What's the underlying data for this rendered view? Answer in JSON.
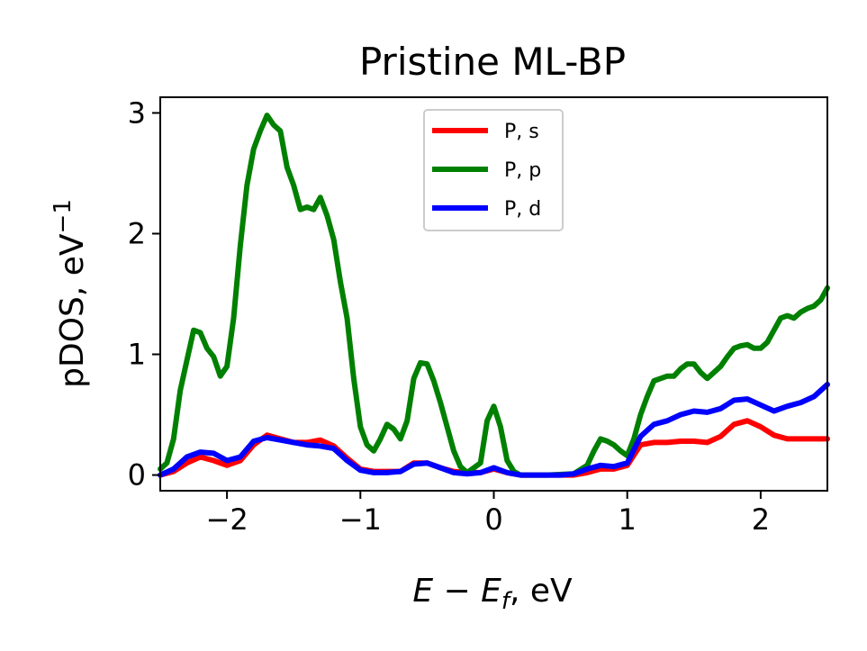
{
  "chart_data": {
    "type": "line",
    "title": "Pristine ML-BP",
    "xlabel": {
      "main": "E − E",
      "sub": "f",
      "suffix": ", eV"
    },
    "ylabel": {
      "main": "pDOS, eV",
      "sup": "−1"
    },
    "xlim": [
      -2.5,
      2.5
    ],
    "ylim": [
      -0.13,
      3.13
    ],
    "xticks": [
      {
        "value": -2,
        "label": "−2"
      },
      {
        "value": -1,
        "label": "−1"
      },
      {
        "value": 0,
        "label": "0"
      },
      {
        "value": 1,
        "label": "1"
      },
      {
        "value": 2,
        "label": "2"
      }
    ],
    "yticks": [
      {
        "value": 0,
        "label": "0"
      },
      {
        "value": 1,
        "label": "1"
      },
      {
        "value": 2,
        "label": "2"
      },
      {
        "value": 3,
        "label": "3"
      }
    ],
    "legend_position": "top-center",
    "grid": false,
    "series": [
      {
        "name": "P, s",
        "color": "#ff0000",
        "points": [
          [
            -2.5,
            0.0
          ],
          [
            -2.4,
            0.03
          ],
          [
            -2.3,
            0.1
          ],
          [
            -2.2,
            0.15
          ],
          [
            -2.1,
            0.12
          ],
          [
            -2.0,
            0.08
          ],
          [
            -1.9,
            0.12
          ],
          [
            -1.8,
            0.25
          ],
          [
            -1.7,
            0.33
          ],
          [
            -1.6,
            0.3
          ],
          [
            -1.5,
            0.27
          ],
          [
            -1.4,
            0.27
          ],
          [
            -1.3,
            0.29
          ],
          [
            -1.2,
            0.24
          ],
          [
            -1.1,
            0.14
          ],
          [
            -1.0,
            0.05
          ],
          [
            -0.9,
            0.03
          ],
          [
            -0.8,
            0.03
          ],
          [
            -0.7,
            0.03
          ],
          [
            -0.6,
            0.1
          ],
          [
            -0.5,
            0.1
          ],
          [
            -0.4,
            0.06
          ],
          [
            -0.3,
            0.03
          ],
          [
            -0.2,
            0.02
          ],
          [
            -0.1,
            0.02
          ],
          [
            0.0,
            0.05
          ],
          [
            0.1,
            0.02
          ],
          [
            0.2,
            0.0
          ],
          [
            0.3,
            0.0
          ],
          [
            0.4,
            0.0
          ],
          [
            0.5,
            0.0
          ],
          [
            0.6,
            0.0
          ],
          [
            0.7,
            0.02
          ],
          [
            0.8,
            0.05
          ],
          [
            0.9,
            0.05
          ],
          [
            1.0,
            0.08
          ],
          [
            1.1,
            0.25
          ],
          [
            1.2,
            0.27
          ],
          [
            1.3,
            0.27
          ],
          [
            1.4,
            0.28
          ],
          [
            1.5,
            0.28
          ],
          [
            1.6,
            0.27
          ],
          [
            1.7,
            0.32
          ],
          [
            1.8,
            0.42
          ],
          [
            1.9,
            0.45
          ],
          [
            2.0,
            0.4
          ],
          [
            2.1,
            0.33
          ],
          [
            2.2,
            0.3
          ],
          [
            2.3,
            0.3
          ],
          [
            2.4,
            0.3
          ],
          [
            2.5,
            0.3
          ]
        ]
      },
      {
        "name": "P, p",
        "color": "#008000",
        "points": [
          [
            -2.5,
            0.05
          ],
          [
            -2.45,
            0.1
          ],
          [
            -2.4,
            0.3
          ],
          [
            -2.35,
            0.7
          ],
          [
            -2.3,
            0.95
          ],
          [
            -2.25,
            1.2
          ],
          [
            -2.2,
            1.18
          ],
          [
            -2.15,
            1.05
          ],
          [
            -2.1,
            0.98
          ],
          [
            -2.05,
            0.82
          ],
          [
            -2.0,
            0.9
          ],
          [
            -1.95,
            1.3
          ],
          [
            -1.9,
            1.9
          ],
          [
            -1.85,
            2.4
          ],
          [
            -1.8,
            2.7
          ],
          [
            -1.75,
            2.85
          ],
          [
            -1.7,
            2.98
          ],
          [
            -1.65,
            2.9
          ],
          [
            -1.6,
            2.85
          ],
          [
            -1.55,
            2.55
          ],
          [
            -1.5,
            2.4
          ],
          [
            -1.45,
            2.2
          ],
          [
            -1.4,
            2.22
          ],
          [
            -1.35,
            2.2
          ],
          [
            -1.3,
            2.3
          ],
          [
            -1.25,
            2.15
          ],
          [
            -1.2,
            1.95
          ],
          [
            -1.15,
            1.6
          ],
          [
            -1.1,
            1.3
          ],
          [
            -1.05,
            0.8
          ],
          [
            -1.0,
            0.4
          ],
          [
            -0.95,
            0.25
          ],
          [
            -0.9,
            0.2
          ],
          [
            -0.85,
            0.3
          ],
          [
            -0.8,
            0.42
          ],
          [
            -0.75,
            0.38
          ],
          [
            -0.7,
            0.3
          ],
          [
            -0.65,
            0.45
          ],
          [
            -0.6,
            0.8
          ],
          [
            -0.55,
            0.93
          ],
          [
            -0.5,
            0.92
          ],
          [
            -0.45,
            0.78
          ],
          [
            -0.4,
            0.6
          ],
          [
            -0.35,
            0.4
          ],
          [
            -0.3,
            0.2
          ],
          [
            -0.25,
            0.07
          ],
          [
            -0.2,
            0.02
          ],
          [
            -0.1,
            0.1
          ],
          [
            -0.05,
            0.45
          ],
          [
            0.0,
            0.57
          ],
          [
            0.05,
            0.4
          ],
          [
            0.1,
            0.12
          ],
          [
            0.15,
            0.03
          ],
          [
            0.2,
            0.0
          ],
          [
            0.4,
            0.0
          ],
          [
            0.6,
            0.01
          ],
          [
            0.7,
            0.08
          ],
          [
            0.75,
            0.2
          ],
          [
            0.8,
            0.3
          ],
          [
            0.85,
            0.28
          ],
          [
            0.9,
            0.25
          ],
          [
            0.95,
            0.2
          ],
          [
            1.0,
            0.16
          ],
          [
            1.05,
            0.3
          ],
          [
            1.1,
            0.5
          ],
          [
            1.15,
            0.65
          ],
          [
            1.2,
            0.78
          ],
          [
            1.25,
            0.8
          ],
          [
            1.3,
            0.82
          ],
          [
            1.35,
            0.82
          ],
          [
            1.4,
            0.88
          ],
          [
            1.45,
            0.92
          ],
          [
            1.5,
            0.92
          ],
          [
            1.55,
            0.85
          ],
          [
            1.6,
            0.8
          ],
          [
            1.65,
            0.85
          ],
          [
            1.7,
            0.9
          ],
          [
            1.75,
            0.98
          ],
          [
            1.8,
            1.05
          ],
          [
            1.85,
            1.07
          ],
          [
            1.9,
            1.08
          ],
          [
            1.95,
            1.05
          ],
          [
            2.0,
            1.05
          ],
          [
            2.05,
            1.1
          ],
          [
            2.1,
            1.2
          ],
          [
            2.15,
            1.3
          ],
          [
            2.2,
            1.32
          ],
          [
            2.25,
            1.3
          ],
          [
            2.3,
            1.35
          ],
          [
            2.35,
            1.38
          ],
          [
            2.4,
            1.4
          ],
          [
            2.45,
            1.45
          ],
          [
            2.5,
            1.55
          ]
        ]
      },
      {
        "name": "P, d",
        "color": "#0000ff",
        "points": [
          [
            -2.5,
            0.0
          ],
          [
            -2.4,
            0.05
          ],
          [
            -2.3,
            0.15
          ],
          [
            -2.2,
            0.19
          ],
          [
            -2.1,
            0.18
          ],
          [
            -2.0,
            0.12
          ],
          [
            -1.9,
            0.15
          ],
          [
            -1.8,
            0.28
          ],
          [
            -1.7,
            0.31
          ],
          [
            -1.6,
            0.29
          ],
          [
            -1.5,
            0.27
          ],
          [
            -1.4,
            0.25
          ],
          [
            -1.3,
            0.24
          ],
          [
            -1.2,
            0.22
          ],
          [
            -1.1,
            0.12
          ],
          [
            -1.0,
            0.04
          ],
          [
            -0.9,
            0.02
          ],
          [
            -0.8,
            0.02
          ],
          [
            -0.7,
            0.03
          ],
          [
            -0.6,
            0.09
          ],
          [
            -0.5,
            0.1
          ],
          [
            -0.4,
            0.06
          ],
          [
            -0.3,
            0.02
          ],
          [
            -0.2,
            0.01
          ],
          [
            -0.1,
            0.02
          ],
          [
            0.0,
            0.06
          ],
          [
            0.1,
            0.02
          ],
          [
            0.2,
            0.0
          ],
          [
            0.3,
            0.0
          ],
          [
            0.4,
            0.0
          ],
          [
            0.5,
            0.0
          ],
          [
            0.6,
            0.01
          ],
          [
            0.7,
            0.05
          ],
          [
            0.8,
            0.08
          ],
          [
            0.9,
            0.07
          ],
          [
            1.0,
            0.1
          ],
          [
            1.1,
            0.32
          ],
          [
            1.2,
            0.42
          ],
          [
            1.3,
            0.45
          ],
          [
            1.4,
            0.5
          ],
          [
            1.5,
            0.53
          ],
          [
            1.6,
            0.52
          ],
          [
            1.7,
            0.55
          ],
          [
            1.8,
            0.62
          ],
          [
            1.9,
            0.63
          ],
          [
            2.0,
            0.58
          ],
          [
            2.1,
            0.53
          ],
          [
            2.2,
            0.57
          ],
          [
            2.3,
            0.6
          ],
          [
            2.4,
            0.65
          ],
          [
            2.5,
            0.75
          ]
        ]
      }
    ]
  }
}
